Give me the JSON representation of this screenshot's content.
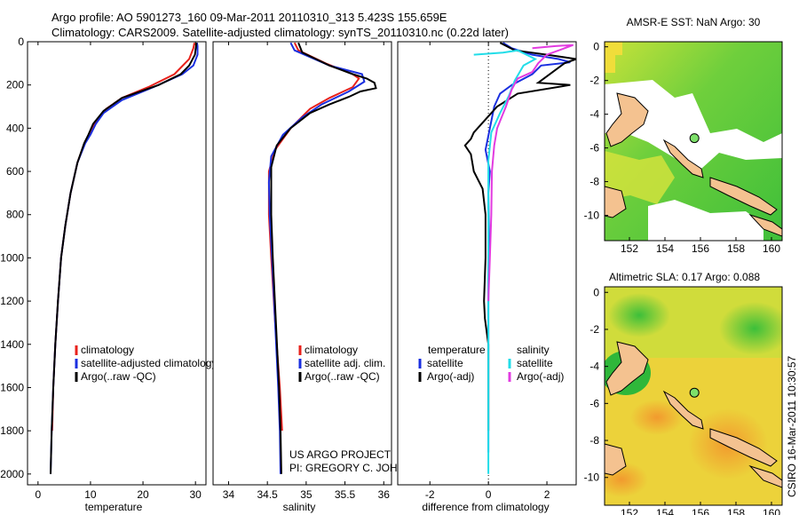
{
  "header": {
    "line1": "Argo profile: AO 5901273_160 09-Mar-2011 20110310_313 5.423S 155.659E",
    "line2": "Climatology: CARS2009. Satellite-adjusted climatology: synTS_20110310.nc (0.22d later)"
  },
  "side_label": "CSIRO 16-Mar-2011 10:30:57",
  "credit": {
    "line1": "US ARGO PROJECT",
    "line2": "PI: GREGORY C. JOHNSON"
  },
  "colors": {
    "clim": "#e8211b",
    "sat": "#1a2fe0",
    "argo": "#000000",
    "sat_diff": "#22dde8",
    "argo_diff": "#e23be0"
  },
  "chart_data": [
    {
      "type": "line",
      "id": "temperature",
      "xlabel": "temperature",
      "xlim": [
        -2,
        32
      ],
      "ylim": [
        2050,
        0
      ],
      "xticks": [
        0,
        10,
        20,
        30
      ],
      "yticks": [
        0,
        200,
        400,
        600,
        800,
        1000,
        1200,
        1400,
        1600,
        1800,
        2000
      ],
      "legend": [
        "climatology",
        "satellite-adjusted climatology",
        "Argo(..raw -QC)"
      ],
      "series": [
        {
          "name": "climatology",
          "color": "clim",
          "points": [
            [
              29.8,
              5
            ],
            [
              29.6,
              30
            ],
            [
              28.8,
              80
            ],
            [
              26,
              150
            ],
            [
              21,
              210
            ],
            [
              16,
              260
            ],
            [
              13,
              310
            ],
            [
              11,
              370
            ],
            [
              10,
              420
            ],
            [
              9,
              460
            ],
            [
              7.5,
              560
            ],
            [
              6.2,
              700
            ],
            [
              5.2,
              850
            ],
            [
              4.4,
              1000
            ],
            [
              3.8,
              1200
            ],
            [
              3.3,
              1400
            ],
            [
              2.9,
              1600
            ],
            [
              2.7,
              1800
            ]
          ]
        },
        {
          "name": "satellite-adjusted climatology",
          "color": "sat",
          "points": [
            [
              30.3,
              5
            ],
            [
              30.4,
              20
            ],
            [
              30.4,
              60
            ],
            [
              29.6,
              110
            ],
            [
              27.5,
              150
            ],
            [
              22,
              210
            ],
            [
              16,
              270
            ],
            [
              12.5,
              330
            ],
            [
              11,
              380
            ],
            [
              10,
              430
            ],
            [
              9,
              470
            ],
            [
              7.5,
              560
            ],
            [
              6.2,
              700
            ],
            [
              5.2,
              850
            ],
            [
              4.4,
              1000
            ],
            [
              3.8,
              1200
            ],
            [
              3.3,
              1400
            ],
            [
              2.9,
              1600
            ],
            [
              2.6,
              1800
            ],
            [
              2.4,
              2000
            ]
          ]
        },
        {
          "name": "Argo(..raw -QC)",
          "color": "argo",
          "points": [
            [
              30.2,
              5
            ],
            [
              30.1,
              20
            ],
            [
              29.9,
              60
            ],
            [
              28.8,
              110
            ],
            [
              27.2,
              150
            ],
            [
              23,
              200
            ],
            [
              16,
              260
            ],
            [
              12.5,
              320
            ],
            [
              10.5,
              380
            ],
            [
              9.6,
              430
            ],
            [
              8.8,
              470
            ],
            [
              7.5,
              560
            ],
            [
              6.2,
              700
            ],
            [
              5.2,
              850
            ],
            [
              4.4,
              1000
            ],
            [
              3.8,
              1200
            ],
            [
              3.3,
              1400
            ],
            [
              2.9,
              1600
            ],
            [
              2.6,
              1800
            ],
            [
              2.4,
              2000
            ]
          ]
        }
      ]
    },
    {
      "type": "line",
      "id": "salinity",
      "xlabel": "salinity",
      "xlim": [
        33.8,
        36.1
      ],
      "ylim": [
        2050,
        0
      ],
      "xticks": [
        34,
        34.5,
        35,
        35.5,
        36
      ],
      "legend": [
        "climatology",
        "satellite adj. clim.",
        "Argo(..raw -QC)"
      ],
      "series": [
        {
          "name": "climatology",
          "color": "clim",
          "points": [
            [
              34.85,
              5
            ],
            [
              34.9,
              40
            ],
            [
              35.25,
              100
            ],
            [
              35.6,
              150
            ],
            [
              35.68,
              170
            ],
            [
              35.6,
              210
            ],
            [
              35.3,
              260
            ],
            [
              35.05,
              310
            ],
            [
              34.8,
              400
            ],
            [
              34.6,
              500
            ],
            [
              34.52,
              600
            ],
            [
              34.52,
              800
            ],
            [
              34.55,
              1000
            ],
            [
              34.6,
              1300
            ],
            [
              34.66,
              1600
            ],
            [
              34.69,
              1800
            ]
          ]
        },
        {
          "name": "satellite adj. clim.",
          "color": "sat",
          "points": [
            [
              34.8,
              5
            ],
            [
              34.85,
              40
            ],
            [
              35.3,
              110
            ],
            [
              35.72,
              150
            ],
            [
              35.75,
              185
            ],
            [
              35.55,
              230
            ],
            [
              35.2,
              290
            ],
            [
              34.95,
              350
            ],
            [
              34.7,
              430
            ],
            [
              34.55,
              530
            ],
            [
              34.52,
              650
            ],
            [
              34.53,
              800
            ],
            [
              34.56,
              1000
            ],
            [
              34.6,
              1300
            ],
            [
              34.64,
              1600
            ],
            [
              34.66,
              1800
            ],
            [
              34.67,
              2000
            ]
          ]
        },
        {
          "name": "Argo(..raw -QC)",
          "color": "argo",
          "points": [
            [
              34.9,
              5
            ],
            [
              34.95,
              50
            ],
            [
              35.3,
              110
            ],
            [
              35.6,
              150
            ],
            [
              35.78,
              170
            ],
            [
              35.88,
              190
            ],
            [
              35.9,
              215
            ],
            [
              35.7,
              230
            ],
            [
              35.55,
              255
            ],
            [
              35.3,
              290
            ],
            [
              35.05,
              330
            ],
            [
              34.8,
              400
            ],
            [
              34.62,
              480
            ],
            [
              34.55,
              580
            ],
            [
              34.55,
              800
            ],
            [
              34.57,
              1000
            ],
            [
              34.61,
              1300
            ],
            [
              34.65,
              1600
            ],
            [
              34.67,
              1800
            ],
            [
              34.68,
              2000
            ]
          ]
        }
      ]
    },
    {
      "type": "line",
      "id": "difference",
      "xlabel": "difference from climatology",
      "xlim": [
        -3.1,
        3.0
      ],
      "ylim": [
        2050,
        0
      ],
      "xticks": [
        -2,
        0,
        2
      ],
      "legend_left_title": "temperature",
      "legend_right_title": "salinity",
      "legend": [
        "satellite",
        "Argo(-adj)",
        "satellite",
        "Argo(-adj)"
      ],
      "series": [
        {
          "name": "temperature satellite",
          "color": "sat",
          "points": [
            [
              0.5,
              5
            ],
            [
              0.8,
              30
            ],
            [
              1.5,
              60
            ],
            [
              2.4,
              80
            ],
            [
              2.8,
              95
            ],
            [
              1.8,
              110
            ],
            [
              1.5,
              150
            ],
            [
              0.8,
              200
            ],
            [
              0.4,
              240
            ],
            [
              0.2,
              300
            ],
            [
              0.05,
              400
            ],
            [
              -0.1,
              500
            ],
            [
              0.05,
              600
            ],
            [
              0,
              700
            ],
            [
              0.02,
              900
            ],
            [
              0,
              1100
            ],
            [
              0,
              1300
            ],
            [
              0,
              1500
            ],
            [
              0,
              1700
            ],
            [
              0,
              1900
            ]
          ]
        },
        {
          "name": "temperature Argo(-adj)",
          "color": "argo",
          "points": [
            [
              0.4,
              5
            ],
            [
              0.9,
              40
            ],
            [
              2,
              60
            ],
            [
              3,
              80
            ],
            [
              2.6,
              100
            ],
            [
              2.2,
              140
            ],
            [
              1.7,
              190
            ],
            [
              2.8,
              200
            ],
            [
              1,
              240
            ],
            [
              0.3,
              300
            ],
            [
              -0.5,
              420
            ],
            [
              -0.6,
              450
            ],
            [
              -0.8,
              480
            ],
            [
              -0.6,
              520
            ],
            [
              -0.5,
              600
            ],
            [
              -0.2,
              680
            ],
            [
              -0.1,
              800
            ],
            [
              -0.1,
              1000
            ],
            [
              -0.15,
              1200
            ],
            [
              -0.12,
              1280
            ],
            [
              0,
              1400
            ],
            [
              0,
              1600
            ],
            [
              0,
              1800
            ]
          ]
        },
        {
          "name": "salinity satellite",
          "color": "sat_diff",
          "points": [
            [
              -0.5,
              60
            ],
            [
              0.5,
              50
            ],
            [
              1,
              40
            ],
            [
              1.6,
              80
            ],
            [
              1.2,
              110
            ],
            [
              0.9,
              180
            ],
            [
              0.7,
              250
            ],
            [
              0.4,
              330
            ],
            [
              0.1,
              420
            ],
            [
              0,
              550
            ],
            [
              0,
              700
            ],
            [
              0,
              900
            ],
            [
              0,
              1100
            ],
            [
              0,
              1300
            ],
            [
              0,
              1500
            ],
            [
              0,
              1700
            ],
            [
              0,
              1900
            ],
            [
              0,
              2000
            ]
          ]
        },
        {
          "name": "salinity Argo(-adj)",
          "color": "argo_diff",
          "points": [
            [
              1.5,
              30
            ],
            [
              2.3,
              20
            ],
            [
              2.9,
              15
            ],
            [
              2,
              60
            ],
            [
              1.7,
              100
            ],
            [
              1.5,
              140
            ],
            [
              1,
              170
            ],
            [
              0.8,
              220
            ],
            [
              0.6,
              300
            ],
            [
              0.3,
              400
            ],
            [
              0.2,
              480
            ],
            [
              0.12,
              600
            ],
            [
              0.1,
              800
            ],
            [
              0.05,
              1000
            ],
            [
              0,
              1200
            ]
          ]
        }
      ]
    }
  ],
  "maps": [
    {
      "title": "AMSR-E SST: NaN Argo: 30",
      "xticks": [
        152,
        154,
        156,
        158,
        160
      ],
      "yticks": [
        0,
        -2,
        -4,
        -6,
        -8,
        -10
      ],
      "xlim": [
        150.6,
        160.6
      ],
      "ylim": [
        -11.5,
        0.3
      ],
      "float": [
        155.66,
        -5.42
      ]
    },
    {
      "title": "Altimetric SLA: 0.17 Argo: 0.088",
      "xticks": [
        152,
        154,
        156,
        158,
        160
      ],
      "yticks": [
        0,
        -2,
        -4,
        -6,
        -8,
        -10
      ],
      "xlim": [
        150.6,
        160.6
      ],
      "ylim": [
        -11.5,
        0.3
      ],
      "float": [
        155.66,
        -5.42
      ]
    }
  ]
}
